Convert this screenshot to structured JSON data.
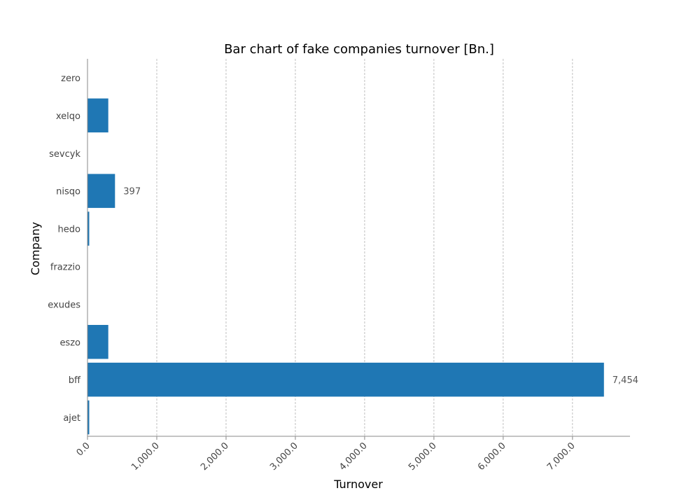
{
  "chart_data": {
    "type": "bar",
    "orientation": "horizontal",
    "title": "Bar chart of fake companies turnover [Bn.]",
    "xlabel": "Turnover",
    "ylabel": "Company",
    "categories": [
      "zero",
      "xelqo",
      "sevcyk",
      "nisqo",
      "hedo",
      "frazzio",
      "exudes",
      "eszo",
      "bff",
      "ajet"
    ],
    "values": [
      2,
      300,
      0,
      397,
      25,
      0,
      0,
      300,
      7454,
      25
    ],
    "data_labels": [
      {
        "category": "nisqo",
        "text": "397"
      },
      {
        "category": "bff",
        "text": "7,454"
      }
    ],
    "xlim": [
      0,
      7830
    ],
    "x_ticks": [
      0,
      1000,
      2000,
      3000,
      4000,
      5000,
      6000,
      7000
    ],
    "x_tick_labels": [
      "0.0",
      "1,000.0",
      "2,000.0",
      "3,000.0",
      "4,000.0",
      "5,000.0",
      "6,000.0",
      "7,000.0"
    ],
    "grid": "vertical dashed",
    "bar_color": "#1f77b4"
  }
}
